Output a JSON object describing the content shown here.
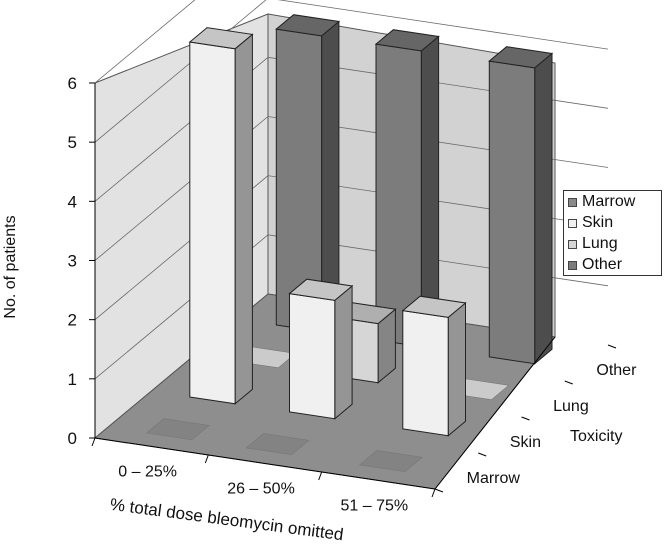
{
  "chart_data": {
    "type": "bar",
    "subtype": "3d-bar",
    "title": "",
    "ylabel": "No. of patients",
    "xlabel": "% total dose bleomycin omitted",
    "zlabel": "Toxicity",
    "ylim": [
      0,
      6
    ],
    "yticks": [
      "0",
      "1",
      "2",
      "3",
      "4",
      "5",
      "6"
    ],
    "categories": [
      "0 – 25%",
      "26 – 50%",
      "51 – 75%"
    ],
    "series": [
      {
        "name": "Marrow",
        "values": [
          0,
          0,
          0
        ],
        "color": "#8a8a8a"
      },
      {
        "name": "Skin",
        "values": [
          6,
          2,
          2
        ],
        "color": "#f0f0f0"
      },
      {
        "name": "Lung",
        "values": [
          0,
          1,
          0
        ],
        "color": "#d6d6d6"
      },
      {
        "name": "Other",
        "values": [
          5,
          5,
          5
        ],
        "color": "#7c7c7c"
      }
    ],
    "depth_labels": [
      "Marrow",
      "Skin",
      "Lung",
      "Other"
    ],
    "grid": true,
    "legend_position": "right"
  }
}
